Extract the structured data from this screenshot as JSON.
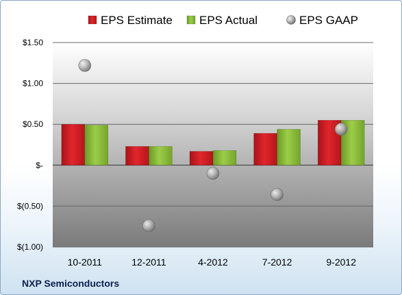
{
  "chart_data": {
    "type": "bar",
    "categories": [
      "10-2011",
      "12-2011",
      "4-2012",
      "7-2012",
      "9-2012"
    ],
    "series": [
      {
        "name": "EPS Estimate",
        "kind": "bar",
        "color": "#d3232a",
        "values": [
          0.5,
          0.23,
          0.17,
          0.39,
          0.55
        ]
      },
      {
        "name": "EPS Actual",
        "kind": "bar",
        "color": "#8cbf3b",
        "values": [
          0.49,
          0.23,
          0.18,
          0.44,
          0.55
        ]
      },
      {
        "name": "EPS GAAP",
        "kind": "scatter",
        "color": "#9a9a9a",
        "values": [
          1.22,
          -0.74,
          -0.1,
          -0.36,
          0.44
        ]
      }
    ],
    "ylim": [
      -1.0,
      1.5
    ],
    "yticks": [
      {
        "value": 1.5,
        "label": "$1.50"
      },
      {
        "value": 1.0,
        "label": "$1.00"
      },
      {
        "value": 0.5,
        "label": "$0.50"
      },
      {
        "value": 0.0,
        "label": "$-"
      },
      {
        "value": -0.5,
        "label": "$(0.50)"
      },
      {
        "value": -1.0,
        "label": "$(1.00)"
      }
    ],
    "grid": true,
    "legend_position": "top"
  },
  "caption": "NXP Semiconductors"
}
